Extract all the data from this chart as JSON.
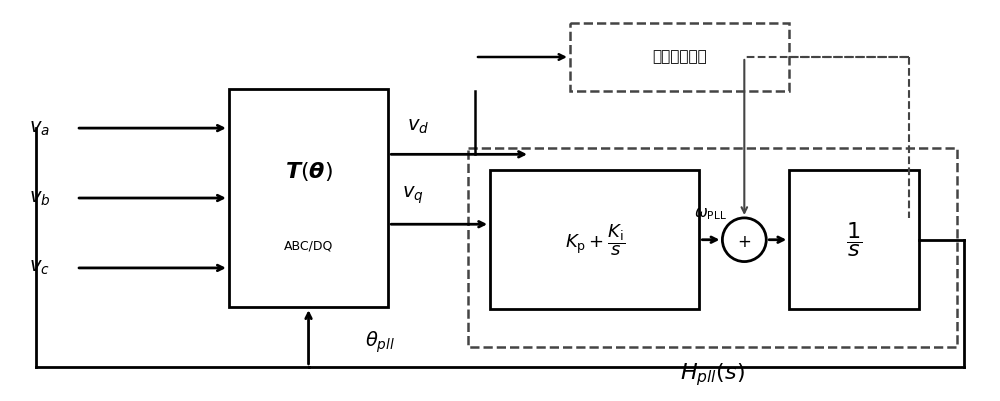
{
  "bg_color": "#ffffff",
  "line_color": "#000000",
  "dashed_color": "#444444",
  "fig_width": 10.0,
  "fig_height": 4.01,
  "addon_text": "附加控制回路"
}
